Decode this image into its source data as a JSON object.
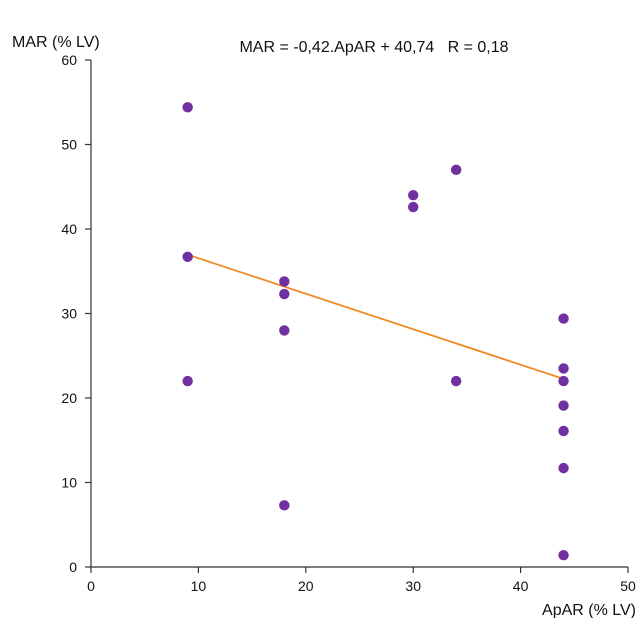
{
  "chart_data": {
    "type": "scatter",
    "title": "",
    "annotation": "MAR = -0,42.ApAR + 40,74   R = 0,18",
    "xlabel": "ApAR (% LV)",
    "ylabel": "MAR (% LV)",
    "xlim": [
      0,
      50
    ],
    "ylim": [
      0,
      60
    ],
    "xticks": [
      "0",
      "10",
      "20",
      "30",
      "40",
      "50"
    ],
    "yticks": [
      "0",
      "10",
      "20",
      "30",
      "40",
      "50",
      "60"
    ],
    "grid": false,
    "colors": {
      "points": "#7030a0",
      "trendline": "#f08a24",
      "axis": "#333333"
    },
    "series": [
      {
        "points": [
          [
            9,
            54.4
          ],
          [
            9,
            36.7
          ],
          [
            9,
            22.0
          ],
          [
            18,
            33.8
          ],
          [
            18,
            32.3
          ],
          [
            18,
            28.0
          ],
          [
            18,
            7.3
          ],
          [
            30,
            44.0
          ],
          [
            30,
            42.6
          ],
          [
            34,
            47.0
          ],
          [
            34,
            22.0
          ],
          [
            44,
            29.4
          ],
          [
            44,
            23.5
          ],
          [
            44,
            22.0
          ],
          [
            44,
            19.1
          ],
          [
            44,
            16.1
          ],
          [
            44,
            11.7
          ],
          [
            44,
            1.4
          ]
        ]
      }
    ],
    "trendline": {
      "slope": -0.42,
      "intercept": 40.74,
      "x_from": 9,
      "x_to": 44
    }
  }
}
